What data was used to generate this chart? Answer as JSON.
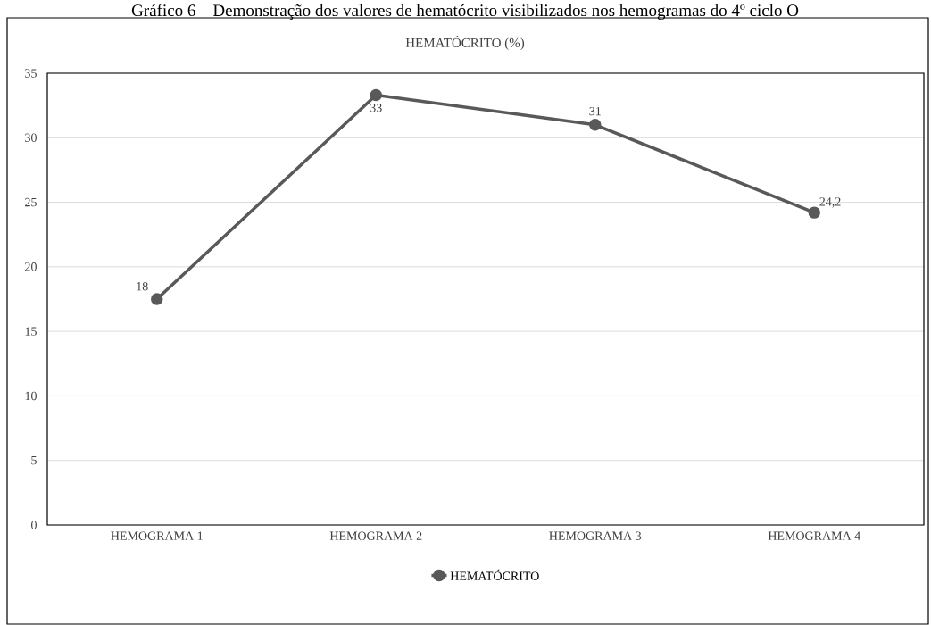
{
  "chart_data": {
    "type": "line",
    "title": "HEMATÓCRITO (%)",
    "annotations": [
      "Gráfico 6 – Demonstração dos valores de hematócrito visibilizados nos hemogramas do 4º ciclo O"
    ],
    "categories": [
      "HEMOGRAMA 1",
      "HEMOGRAMA 2",
      "HEMOGRAMA 3",
      "HEMOGRAMA 4"
    ],
    "series": [
      {
        "name": "HEMATÓCRITO",
        "color": "#595959",
        "values": [
          17.5,
          33.3,
          31,
          24.2
        ],
        "value_labels": [
          "18",
          "33",
          "31",
          "24,2"
        ]
      }
    ],
    "ylim": [
      0,
      35
    ],
    "yticks": [
      0,
      5,
      10,
      15,
      20,
      25,
      30,
      35
    ],
    "grid": "y",
    "legend": "bottom",
    "marker": "circle",
    "line_style": "solid"
  }
}
